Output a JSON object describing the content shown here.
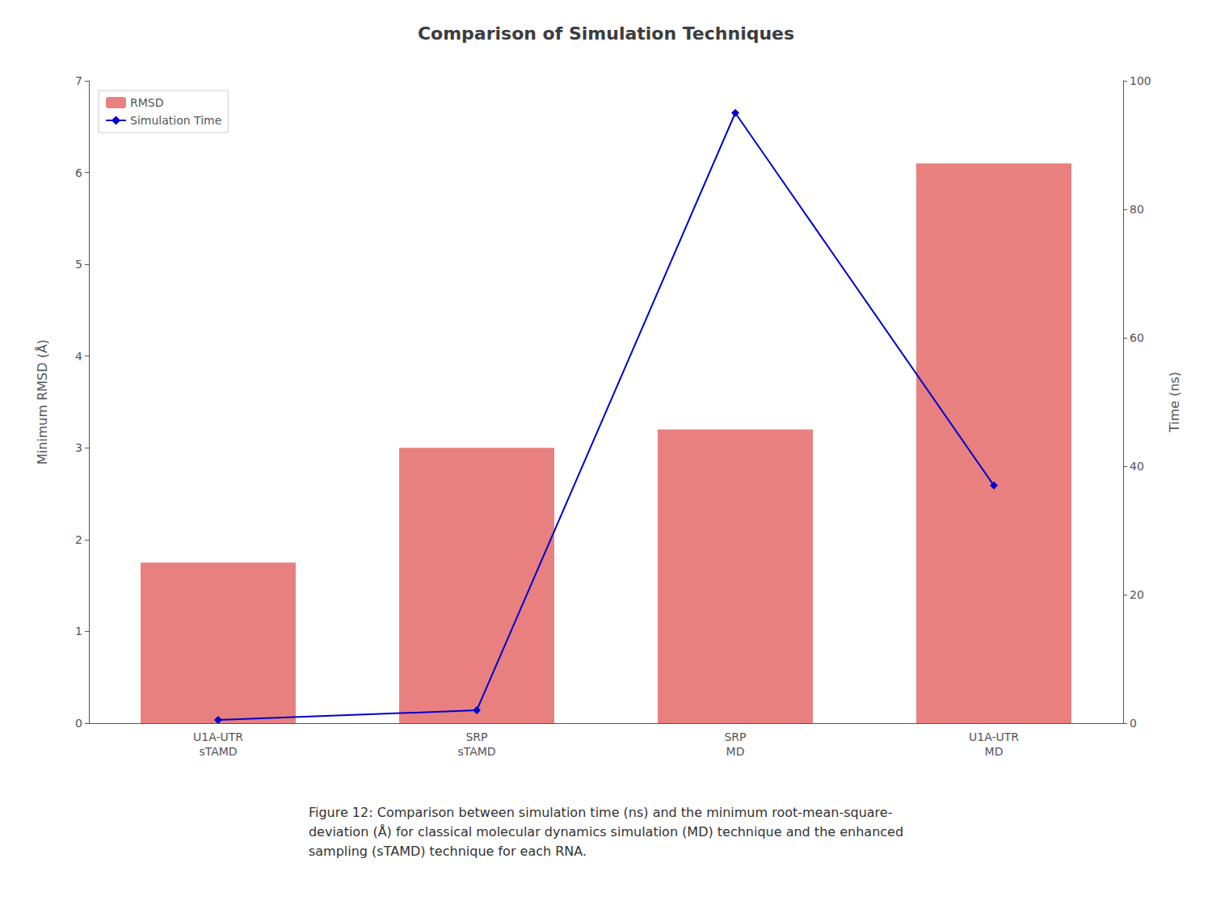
{
  "chart_data": {
    "type": "bar",
    "title": "Comparison of Simulation Techniques",
    "categories": [
      "U1A-UTR\nsTAMD",
      "SRP\nsTAMD",
      "SRP\nMD",
      "U1A-UTR\nMD"
    ],
    "series": [
      {
        "name": "RMSD",
        "type": "bar",
        "color": "#e88080",
        "values": [
          1.75,
          3.0,
          3.2,
          6.1
        ]
      },
      {
        "name": "Simulation Time",
        "type": "line",
        "color": "#0000cc",
        "marker": "diamond",
        "axis": "y2",
        "values": [
          0.5,
          2.0,
          95.0,
          37.0
        ]
      }
    ],
    "ylabel": "Minimum RMSD (Å)",
    "y2label": "Time (ns)",
    "ylim": [
      0,
      7
    ],
    "yticks": [
      0,
      1,
      2,
      3,
      4,
      5,
      6,
      7
    ],
    "y2lim": [
      0,
      100
    ],
    "y2ticks": [
      0,
      20,
      40,
      60,
      80,
      100
    ],
    "grid": false,
    "legend": "upper left",
    "annotations": [
      "Figure 12: Comparison between simulation time (ns) and the minimum root-mean-square-\ndeviation (Å) for classical molecular dynamics simulation (MD) technique and the enhanced\nsampling (sTAMD) technique for each RNA."
    ]
  }
}
